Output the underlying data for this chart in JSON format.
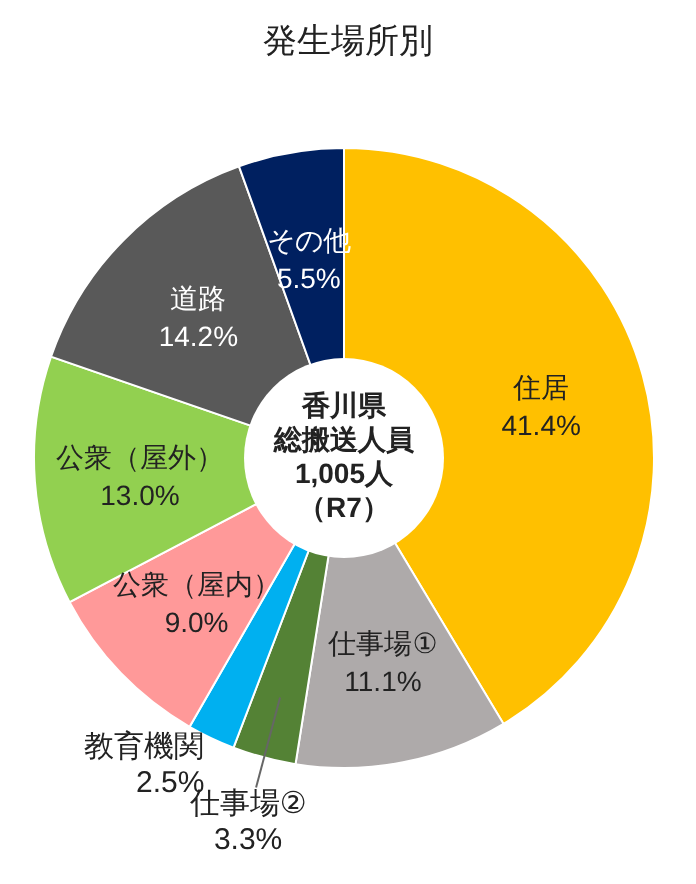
{
  "chart_data": {
    "type": "donut",
    "title": "発生場所別",
    "categories": [
      "住居",
      "仕事場①",
      "仕事場②",
      "教育機関",
      "公衆（屋内）",
      "公衆（屋外）",
      "道路",
      "その他"
    ],
    "values": [
      41.4,
      11.1,
      3.3,
      2.5,
      9.0,
      13.0,
      14.2,
      5.5
    ],
    "colors": [
      "#ffc000",
      "#aeaaaa",
      "#548235",
      "#00b0f0",
      "#ff9999",
      "#92d050",
      "#595959",
      "#002060"
    ],
    "value_labels": [
      "41.4%",
      "11.1%",
      "3.3%",
      "2.5%",
      "9.0%",
      "13.0%",
      "14.2%",
      "5.5%"
    ],
    "annotations": [
      "香川県",
      "総搬送人員",
      "1,005人",
      "（R7）"
    ]
  }
}
